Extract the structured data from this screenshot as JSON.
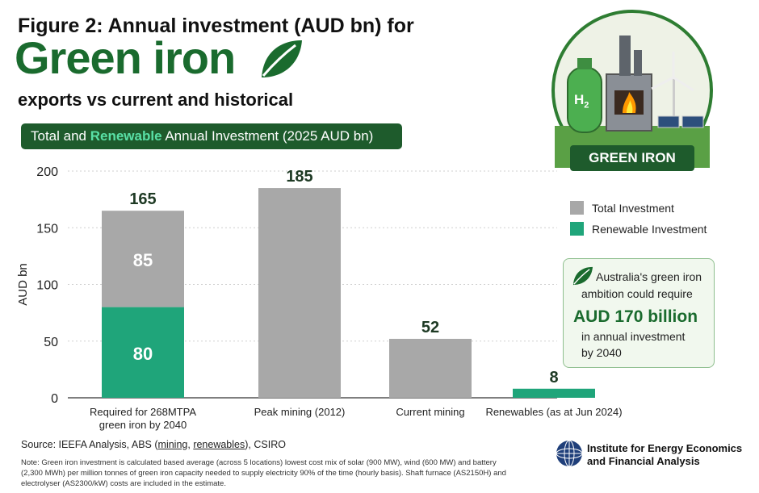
{
  "header": {
    "line1": "Figure 2: Annual investment (AUD bn) for",
    "line2": "Green iron",
    "line3": "exports vs current and historical"
  },
  "banner": {
    "part1": "Total and ",
    "highlight": "Renewable",
    "part2": " Annual Investment (2025 AUD bn)"
  },
  "badge": {
    "h2_label": "H",
    "h2_sub": "2",
    "label": "GREEN IRON"
  },
  "colors": {
    "total": "#a8a8a8",
    "renewable": "#1fa57a",
    "dark_green": "#1e5b2c",
    "title_green": "#1a6b2e"
  },
  "chart_data": {
    "type": "bar",
    "ylabel": "AUD bn",
    "xlabel": "",
    "ylim": [
      0,
      200
    ],
    "yticks": [
      0,
      50,
      100,
      150,
      200
    ],
    "categories": [
      "Required for 268MTPA green iron by 2040",
      "Peak mining (2012)",
      "Current mining",
      "Renewables (as at Jun 2024)"
    ],
    "category_lines": [
      [
        "Required for 268MTPA",
        "green iron by 2040"
      ],
      [
        "Peak mining (2012)"
      ],
      [
        "Current mining"
      ],
      [
        "Renewables (as at Jun 2024)"
      ]
    ],
    "series": [
      {
        "name": "Renewable Investment",
        "values": [
          80,
          0,
          0,
          8
        ]
      },
      {
        "name": "Total Investment",
        "values": [
          85,
          185,
          52,
          0
        ]
      }
    ],
    "segment_labels": [
      "80",
      "85"
    ],
    "totals": [
      "165",
      "185",
      "52",
      "8"
    ],
    "legend": [
      "Total Investment",
      "Renewable Investment"
    ],
    "legend_position": "right",
    "grid": true
  },
  "callout": {
    "line1": "Australia's green iron",
    "line2": "ambition could require",
    "big": "AUD 170 billion",
    "line3": "in annual investment",
    "line4": "by 2040"
  },
  "source": {
    "prefix": "Source: IEEFA Analysis, ABS (",
    "link1": "mining",
    "sep": ", ",
    "link2": "renewables",
    "suffix": "), CSIRO"
  },
  "note": "Note: Green iron investment is calculated based average (across 5 locations) lowest cost mix of solar (900 MW), wind (600 MW) and battery (2,300 MWh) per million tonnes of green iron capacity needed to supply electricity 90% of the time (hourly basis). Shaft furnace (AS2150H) and electrolyser (AS2300/kW) costs are included in the estimate.",
  "org": {
    "line1": "Institute for Energy Economics",
    "line2": "and Financial Analysis"
  }
}
